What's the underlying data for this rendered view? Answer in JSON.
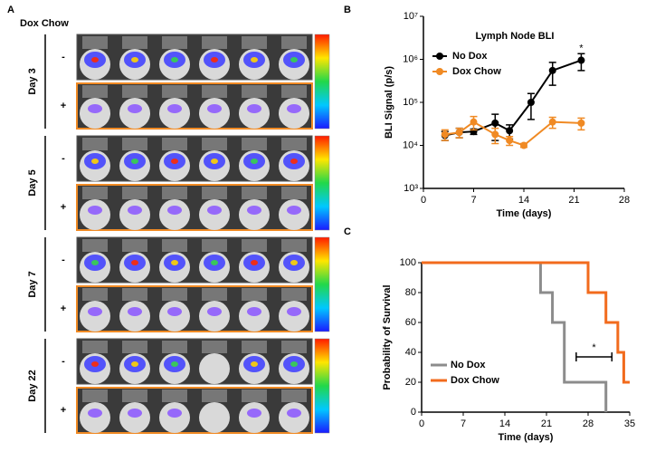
{
  "figure": {
    "panel_labels": [
      "A",
      "B",
      "C"
    ],
    "panel_a": {
      "header": "Dox Chow",
      "days": [
        {
          "label": "Day 3",
          "rows": [
            "-",
            "+"
          ]
        },
        {
          "label": "Day 5",
          "rows": [
            "-",
            "+"
          ]
        },
        {
          "label": "Day 7",
          "rows": [
            "-",
            "+"
          ]
        },
        {
          "label": "Day 22",
          "rows": [
            "-",
            "+"
          ]
        }
      ]
    }
  },
  "chart_data": [
    {
      "type": "line",
      "title": "Lymph Node BLI",
      "xlabel": "Time (days)",
      "ylabel": "BLI Signal (p/s)",
      "log_scale": true,
      "legend": "upper left",
      "xlim": [
        0,
        28
      ],
      "xticks": [
        0,
        7,
        14,
        21,
        28
      ],
      "ylim": [
        1000,
        10000000
      ],
      "yticks": [
        {
          "value": 1000,
          "label": "10³"
        },
        {
          "value": 10000,
          "label": "10⁴"
        },
        {
          "value": 100000,
          "label": "10⁵"
        },
        {
          "value": 1000000,
          "label": "10⁶"
        },
        {
          "value": 10000000,
          "label": "10⁷"
        }
      ],
      "series": [
        {
          "name": "No Dox",
          "color": "#000000",
          "x": [
            3,
            5,
            7,
            10,
            12,
            15,
            18,
            22
          ],
          "values": [
            17000,
            20000,
            21000,
            33000,
            22000,
            100000,
            550000,
            950000
          ],
          "errors": [
            4000,
            5000,
            3000,
            20000,
            8000,
            60000,
            300000,
            400000
          ]
        },
        {
          "name": "Dox Chow",
          "color": "#f08a24",
          "x": [
            3,
            5,
            7,
            10,
            12,
            14,
            18,
            22
          ],
          "values": [
            18000,
            20000,
            35000,
            18000,
            13000,
            10000,
            35000,
            33000
          ],
          "errors": [
            5000,
            5000,
            12000,
            7000,
            3000,
            1000,
            10000,
            10000
          ]
        }
      ],
      "annotations": [
        {
          "text": "*",
          "x": 22,
          "y": 1800000
        }
      ]
    },
    {
      "type": "line",
      "step": true,
      "xlabel": "Time (days)",
      "ylabel": "Probability of Survival",
      "legend": "lower left",
      "xlim": [
        0,
        35
      ],
      "xticks": [
        0,
        7,
        14,
        21,
        28,
        35
      ],
      "ylim": [
        0,
        100
      ],
      "yticks": [
        0,
        20,
        40,
        60,
        80,
        100
      ],
      "series": [
        {
          "name": "No Dox",
          "color": "#8c8c8c",
          "x": [
            0,
            20,
            20,
            22,
            22,
            24,
            24,
            31,
            31
          ],
          "values": [
            100,
            100,
            80,
            80,
            60,
            60,
            20,
            20,
            0
          ]
        },
        {
          "name": "Dox Chow",
          "color": "#f26b1d",
          "x": [
            0,
            28,
            28,
            31,
            31,
            33,
            33,
            34,
            34,
            35
          ],
          "values": [
            100,
            100,
            80,
            80,
            60,
            60,
            40,
            40,
            20,
            20
          ]
        }
      ],
      "bracket": {
        "x": [
          26,
          32
        ],
        "y": 37,
        "label": "*"
      }
    }
  ]
}
